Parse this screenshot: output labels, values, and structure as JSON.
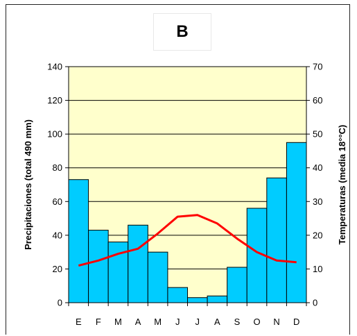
{
  "chart_data": {
    "type": "bar",
    "title": "B",
    "categories": [
      "E",
      "F",
      "M",
      "A",
      "M",
      "J",
      "J",
      "A",
      "S",
      "O",
      "N",
      "D"
    ],
    "series": [
      {
        "type": "bar",
        "axis": "left",
        "values": [
          73,
          43,
          36,
          46,
          30,
          9,
          3,
          4,
          21,
          56,
          74,
          95
        ]
      },
      {
        "type": "line",
        "axis": "right",
        "values": [
          11,
          12.5,
          14.5,
          16,
          20.5,
          25.5,
          26,
          23.5,
          19,
          15,
          12.5,
          12
        ]
      }
    ],
    "ylabel_left": "Precipitaciones (total 490 mm)",
    "ylabel_right": "Temperaturas (media 18°°C)",
    "ylim_left": [
      0,
      140
    ],
    "ylim_right": [
      0,
      70
    ],
    "yticks_left": [
      "0",
      "20",
      "40",
      "60",
      "80",
      "100",
      "120",
      "140"
    ],
    "yticks_right": [
      "0",
      "10",
      "20",
      "30",
      "40",
      "50",
      "60",
      "70"
    ],
    "grid": true,
    "colors": {
      "plot_bg": "#FFFFCC",
      "bars": "#00CCFF",
      "line": "#FF0000",
      "grid": "#000000"
    }
  }
}
